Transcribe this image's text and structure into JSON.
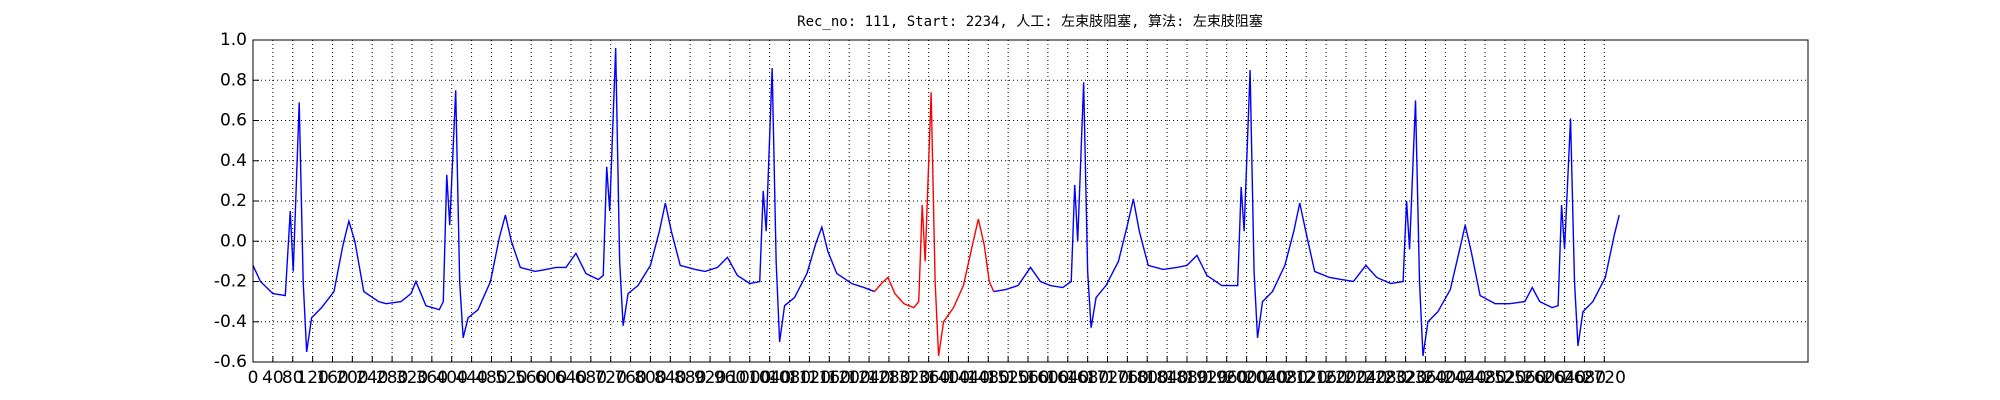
{
  "chart_data": {
    "type": "line",
    "title": "Rec_no: 111, Start: 2234, 人工: 左束肢阻塞, 算法: 左束肢阻塞",
    "xlim": [
      0,
      3130
    ],
    "ylim": [
      -0.6,
      1.0
    ],
    "xticks": [
      0,
      40,
      80,
      120,
      160,
      200,
      240,
      280,
      320,
      360,
      400,
      440,
      480,
      520,
      560,
      600,
      640,
      680,
      720,
      760,
      800,
      840,
      880,
      920,
      960,
      1000,
      1040,
      1080,
      1120,
      1160,
      1200,
      1240,
      1280,
      1320,
      1360,
      1400,
      1440,
      1480,
      1520,
      1560,
      1600,
      1640,
      1680,
      1720,
      1760,
      1800,
      1840,
      1880,
      1920,
      1960,
      2000,
      2040,
      2080,
      2120,
      2160,
      2200,
      2240,
      2280,
      2320,
      2360,
      2400,
      2440,
      2480,
      2520,
      2560,
      2600,
      2640,
      2680,
      2720
    ],
    "yticks": [
      -0.6,
      -0.4,
      -0.2,
      {
        "value": 0.0,
        "label": "0.0"
      },
      0.2,
      0.4,
      0.6,
      0.8,
      {
        "value": 1.0,
        "label": "1.0"
      }
    ],
    "grid": true,
    "series": [
      {
        "color": "#0000ff",
        "x": [
          0,
          15,
          40,
          65,
          75,
          81,
          93,
          101,
          108,
          118,
          138,
          163,
          181,
          193,
          205,
          223,
          253,
          268,
          298,
          318,
          328,
          348,
          375,
          383,
          390,
          396,
          408,
          416,
          423,
          433,
          453,
          478,
          496,
          508,
          520,
          538,
          568,
          590,
          610,
          630,
          650,
          670,
          695,
          705,
          712,
          718,
          730,
          738,
          745,
          755,
          775,
          800,
          818,
          830,
          842,
          860,
          890,
          910,
          935,
          955,
          975,
          1000,
          1020,
          1027,
          1033,
          1045,
          1053,
          1060,
          1070,
          1090,
          1115,
          1133,
          1145,
          1157,
          1175,
          1205,
          1230,
          1251
        ],
        "values": [
          -0.12,
          -0.2,
          -0.26,
          -0.27,
          0.15,
          -0.15,
          0.69,
          -0.2,
          -0.55,
          -0.38,
          -0.33,
          -0.25,
          -0.02,
          0.1,
          0.0,
          -0.25,
          -0.3,
          -0.31,
          -0.3,
          -0.26,
          -0.2,
          -0.32,
          -0.34,
          -0.3,
          0.33,
          0.08,
          0.75,
          -0.2,
          -0.48,
          -0.38,
          -0.34,
          -0.2,
          0.02,
          0.13,
          0.0,
          -0.13,
          -0.15,
          -0.14,
          -0.13,
          -0.13,
          -0.06,
          -0.16,
          -0.19,
          -0.17,
          0.37,
          0.15,
          0.96,
          -0.1,
          -0.42,
          -0.26,
          -0.22,
          -0.12,
          0.05,
          0.19,
          0.05,
          -0.12,
          -0.14,
          -0.15,
          -0.13,
          -0.08,
          -0.17,
          -0.21,
          -0.2,
          0.25,
          0.05,
          0.86,
          -0.1,
          -0.5,
          -0.32,
          -0.28,
          -0.16,
          -0.01,
          0.07,
          -0.05,
          -0.16,
          -0.21,
          -0.23,
          -0.25
        ]
      },
      {
        "color": "#ff0000",
        "x": [
          1251,
          1265,
          1278,
          1292,
          1310,
          1330,
          1340,
          1347,
          1353,
          1365,
          1373,
          1380,
          1390,
          1410,
          1430,
          1448,
          1460,
          1472,
          1482,
          1491
        ],
        "values": [
          -0.25,
          -0.21,
          -0.18,
          -0.26,
          -0.31,
          -0.33,
          -0.3,
          0.18,
          -0.1,
          0.74,
          -0.2,
          -0.57,
          -0.4,
          -0.33,
          -0.22,
          -0.02,
          0.11,
          -0.02,
          -0.2,
          -0.25
        ]
      },
      {
        "color": "#0000ff",
        "x": [
          1491,
          1515,
          1540,
          1565,
          1585,
          1605,
          1630,
          1647,
          1654,
          1660,
          1672,
          1680,
          1687,
          1697,
          1717,
          1742,
          1760,
          1772,
          1784,
          1802,
          1832,
          1860,
          1880,
          1900,
          1920,
          1950,
          1982,
          1989,
          1995,
          2007,
          2015,
          2022,
          2032,
          2052,
          2077,
          2095,
          2107,
          2119,
          2137,
          2167,
          2190,
          2215,
          2240,
          2262,
          2290,
          2315,
          2322,
          2328,
          2340,
          2348,
          2355,
          2365,
          2385,
          2410,
          2428,
          2440,
          2452,
          2470,
          2500,
          2530,
          2560,
          2575,
          2590,
          2615,
          2627,
          2634,
          2640,
          2652,
          2660,
          2667,
          2677,
          2697,
          2722,
          2740,
          2750
        ],
        "values": [
          -0.25,
          -0.24,
          -0.22,
          -0.13,
          -0.2,
          -0.22,
          -0.23,
          -0.2,
          0.28,
          0.0,
          0.79,
          -0.15,
          -0.43,
          -0.28,
          -0.22,
          -0.1,
          0.08,
          0.21,
          0.05,
          -0.12,
          -0.14,
          -0.13,
          -0.12,
          -0.07,
          -0.17,
          -0.22,
          -0.22,
          0.27,
          0.05,
          0.85,
          -0.15,
          -0.48,
          -0.3,
          -0.25,
          -0.12,
          0.05,
          0.19,
          0.05,
          -0.15,
          -0.18,
          -0.19,
          -0.2,
          -0.12,
          -0.18,
          -0.21,
          -0.2,
          0.2,
          -0.04,
          0.7,
          -0.2,
          -0.57,
          -0.4,
          -0.35,
          -0.24,
          -0.05,
          0.08,
          -0.05,
          -0.27,
          -0.31,
          -0.31,
          -0.3,
          -0.23,
          -0.3,
          -0.33,
          -0.32,
          0.18,
          -0.04,
          0.61,
          -0.2,
          -0.52,
          -0.35,
          -0.3,
          -0.18,
          0.03,
          0.13
        ]
      }
    ]
  }
}
